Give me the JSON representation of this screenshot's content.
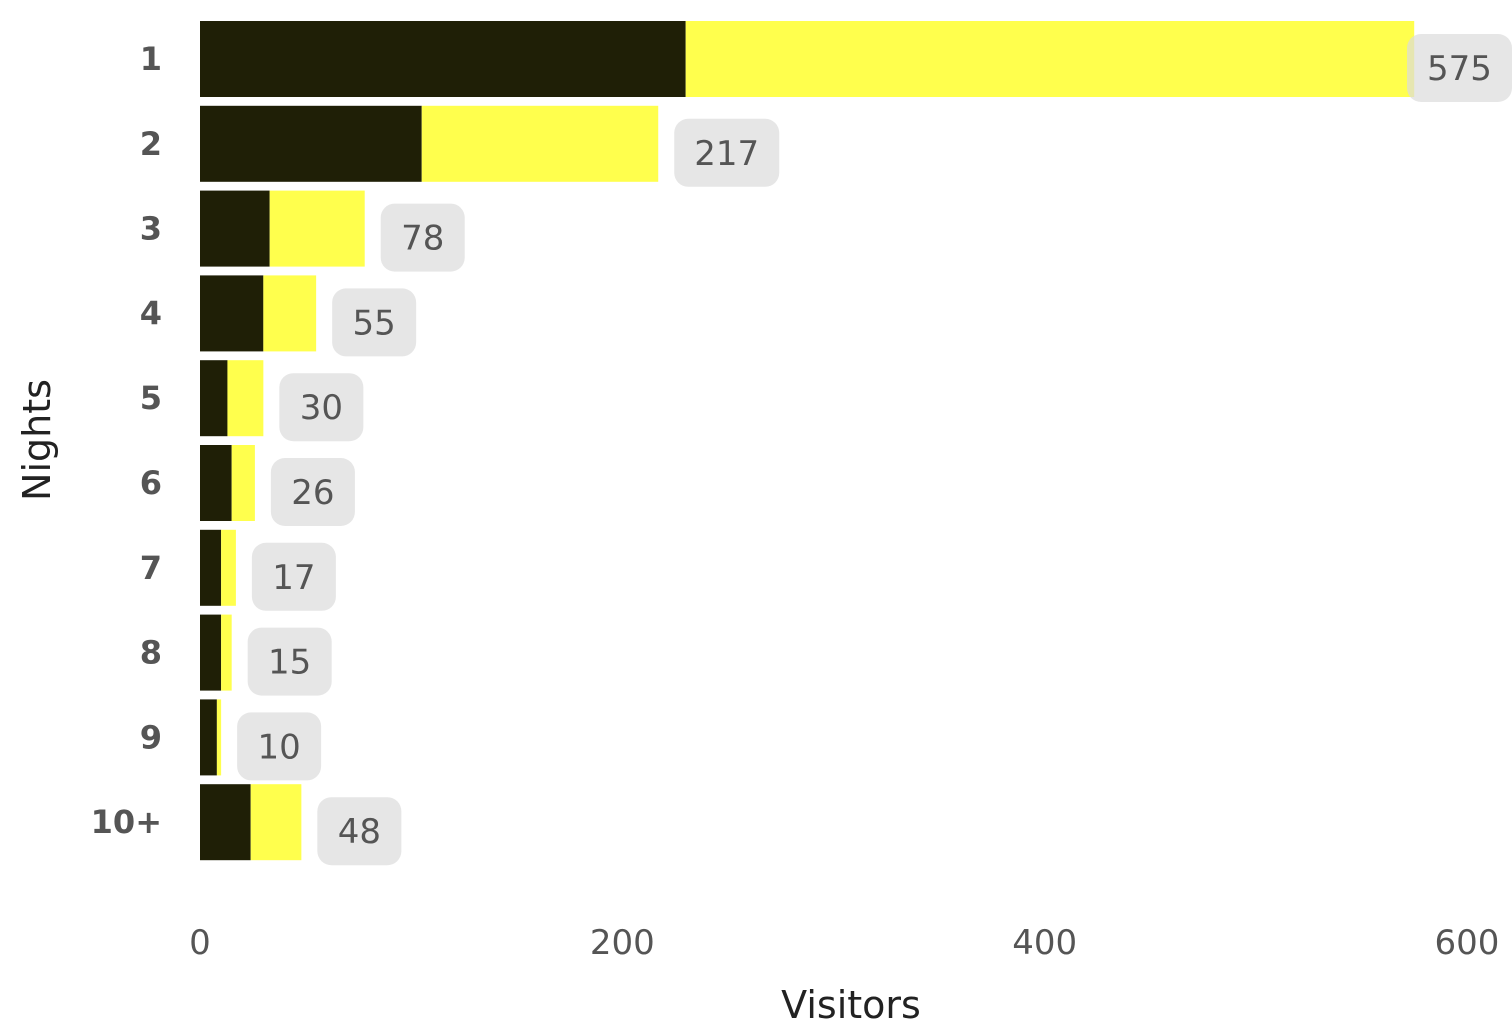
{
  "chart_data": {
    "type": "bar",
    "orientation": "horizontal",
    "stacked": true,
    "categories": [
      "1",
      "2",
      "3",
      "4",
      "5",
      "6",
      "7",
      "8",
      "9",
      "10+"
    ],
    "series": [
      {
        "color": "#1f1f06",
        "values": [
          230,
          105,
          33,
          30,
          13,
          15,
          10,
          10,
          8,
          24
        ]
      },
      {
        "color": "#ffff4d",
        "values": [
          345,
          112,
          45,
          25,
          17,
          11,
          7,
          5,
          2,
          24
        ]
      }
    ],
    "totals": [
      575,
      217,
      78,
      55,
      30,
      26,
      17,
      15,
      10,
      48
    ],
    "xlabel": "Visitors",
    "ylabel": "Nights",
    "xlim": [
      0,
      600
    ],
    "xticks": [
      "0",
      "200",
      "400",
      "600"
    ],
    "grid": false
  }
}
